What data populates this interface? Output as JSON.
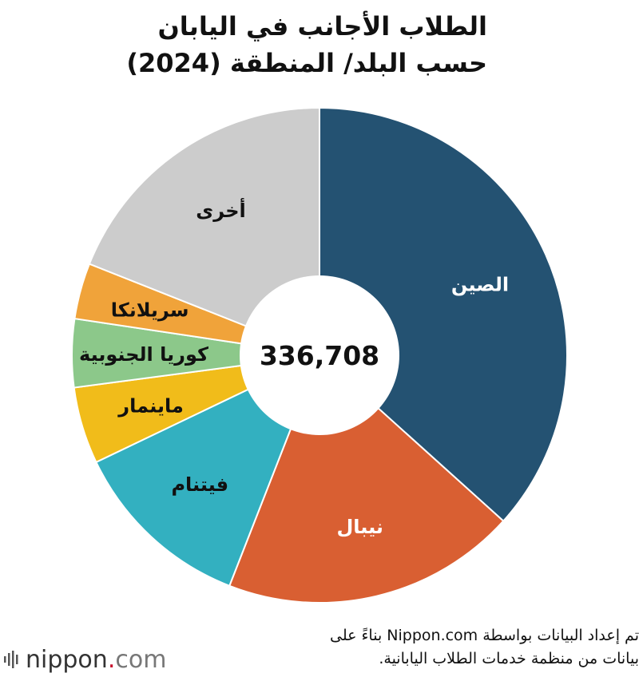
{
  "title": {
    "line1": "الطلاب الأجانب في اليابان",
    "line2": "حسب البلد/ المنطقة (2024)"
  },
  "chart_data": {
    "type": "pie",
    "variant": "donut",
    "center_label": "336,708",
    "total": 336708,
    "slices": [
      {
        "label": "الصين",
        "value": 123500,
        "color": "#245272",
        "label_color": "#ffffff"
      },
      {
        "label": "نيبال",
        "value": 64800,
        "color": "#d95f32",
        "label_color": "#ffffff"
      },
      {
        "label": "فيتنام",
        "value": 40300,
        "color": "#33b0c0",
        "label_color": "#111111"
      },
      {
        "label": "ماينمار",
        "value": 16900,
        "color": "#f1bc1a",
        "label_color": "#111111"
      },
      {
        "label": "كوريا الجنوبية",
        "value": 15000,
        "color": "#8cc88a",
        "label_color": "#111111"
      },
      {
        "label": "سريلانكا",
        "value": 12300,
        "color": "#f0a33a",
        "label_color": "#111111"
      },
      {
        "label": "أخرى",
        "value": 63908,
        "color": "#cccccc",
        "label_color": "#111111"
      }
    ]
  },
  "source": {
    "line1": "تم إعداد البيانات بواسطة Nippon.com بناءً على",
    "line2": "بيانات من منظمة خدمات الطلاب اليابانية."
  },
  "logo": {
    "name": "nippon",
    "dot": ".",
    "tld": "com"
  }
}
